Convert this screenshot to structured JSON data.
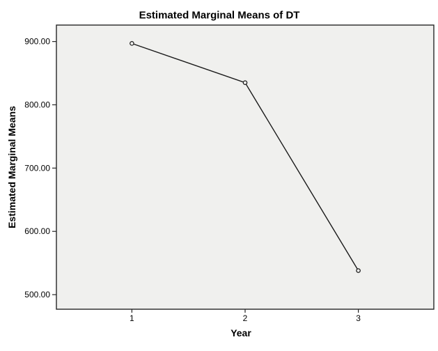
{
  "chart_data": {
    "type": "line",
    "title": "Estimated Marginal Means of DT",
    "xlabel": "Year",
    "ylabel": "Estimated Marginal Means",
    "categories": [
      "1",
      "2",
      "3"
    ],
    "series": [
      {
        "name": "DT",
        "values": [
          897,
          835,
          538
        ]
      }
    ],
    "ytick_values": [
      900,
      800,
      700,
      600,
      500
    ],
    "ytick_labels": [
      "900.00",
      "800.00",
      "700.00",
      "600.00",
      "500.00"
    ],
    "ylim": [
      477,
      926
    ],
    "grid": false,
    "legend": false,
    "marker": "open-circle",
    "colors": {
      "line": "#1a1a1a",
      "marker_stroke": "#1a1a1a",
      "plot_background": "#f0f0ee",
      "frame": "#262626",
      "page_background": "#ffffff",
      "text": "#000000"
    }
  }
}
